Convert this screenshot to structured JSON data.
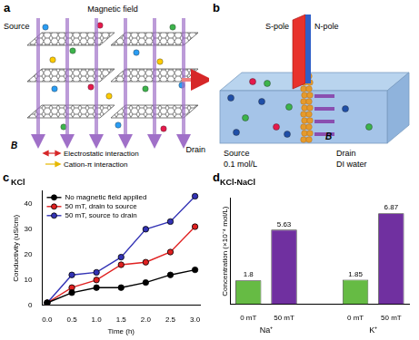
{
  "panels": {
    "a": {
      "label": "a",
      "field": "Magnetic field",
      "source": "Source",
      "drain": "Drain",
      "b_symbol": "B",
      "legend": [
        {
          "label": "Electrostatic interaction",
          "color": "#d62728"
        },
        {
          "label": "Cation-π interaction",
          "color": "#e6b800"
        }
      ]
    },
    "b": {
      "label": "b",
      "s_pole": "S-pole",
      "n_pole": "N-pole",
      "source": "Source",
      "source_liquid": "0.1 mol/L",
      "drain": "Drain",
      "drain_liquid": "DI water",
      "b_symbol": "B"
    }
  },
  "chart_data": [
    {
      "panel": "c",
      "type": "line",
      "title": "KCl",
      "x_label": "Time (h)",
      "y_label": "Conductivity (uS/cm)",
      "x": [
        0,
        0.5,
        1,
        1.5,
        2,
        2.5,
        3
      ],
      "series": [
        {
          "name": "No magnetic field applied",
          "color": "#000000",
          "values": [
            1,
            5,
            7,
            7,
            9,
            12,
            14
          ]
        },
        {
          "name": "50 mT, drain to source",
          "color": "#e02020",
          "values": [
            1,
            7,
            10,
            16,
            17,
            21,
            31
          ]
        },
        {
          "name": "50 mT, source to drain",
          "color": "#3333b5",
          "values": [
            1,
            12,
            13,
            19,
            30,
            33,
            43
          ]
        }
      ],
      "xlim": [
        -0.1,
        3.1
      ],
      "xticks": [
        {
          "value": 0,
          "label": "0.0"
        },
        0.5,
        {
          "value": 1,
          "label": "1.0"
        },
        1.5,
        {
          "value": 2,
          "label": "2.0"
        },
        2.5,
        {
          "value": 3,
          "label": "3.0"
        }
      ],
      "ylim": [
        0,
        45
      ],
      "yticks": [
        0,
        10,
        20,
        30,
        40
      ],
      "grid": false,
      "legend": "upper left",
      "marker": "circle"
    },
    {
      "panel": "d",
      "type": "bar",
      "title": "KCl-NaCl",
      "y_label": "Concentration (×10⁻⁴ mol/L)",
      "categories": [
        "0 mT",
        "50 mT",
        null,
        "0 mT",
        "50 mT"
      ],
      "group_labels": [
        "Na⁺",
        "K⁺"
      ],
      "values": [
        1.8,
        5.63,
        null,
        1.85,
        6.87
      ],
      "colors": [
        "#66bb44",
        "#7030a0",
        null,
        "#66bb44",
        "#7030a0"
      ],
      "ylim": [
        0,
        8
      ],
      "tick_labels": "x",
      "grid": false,
      "data_labels": true
    }
  ]
}
